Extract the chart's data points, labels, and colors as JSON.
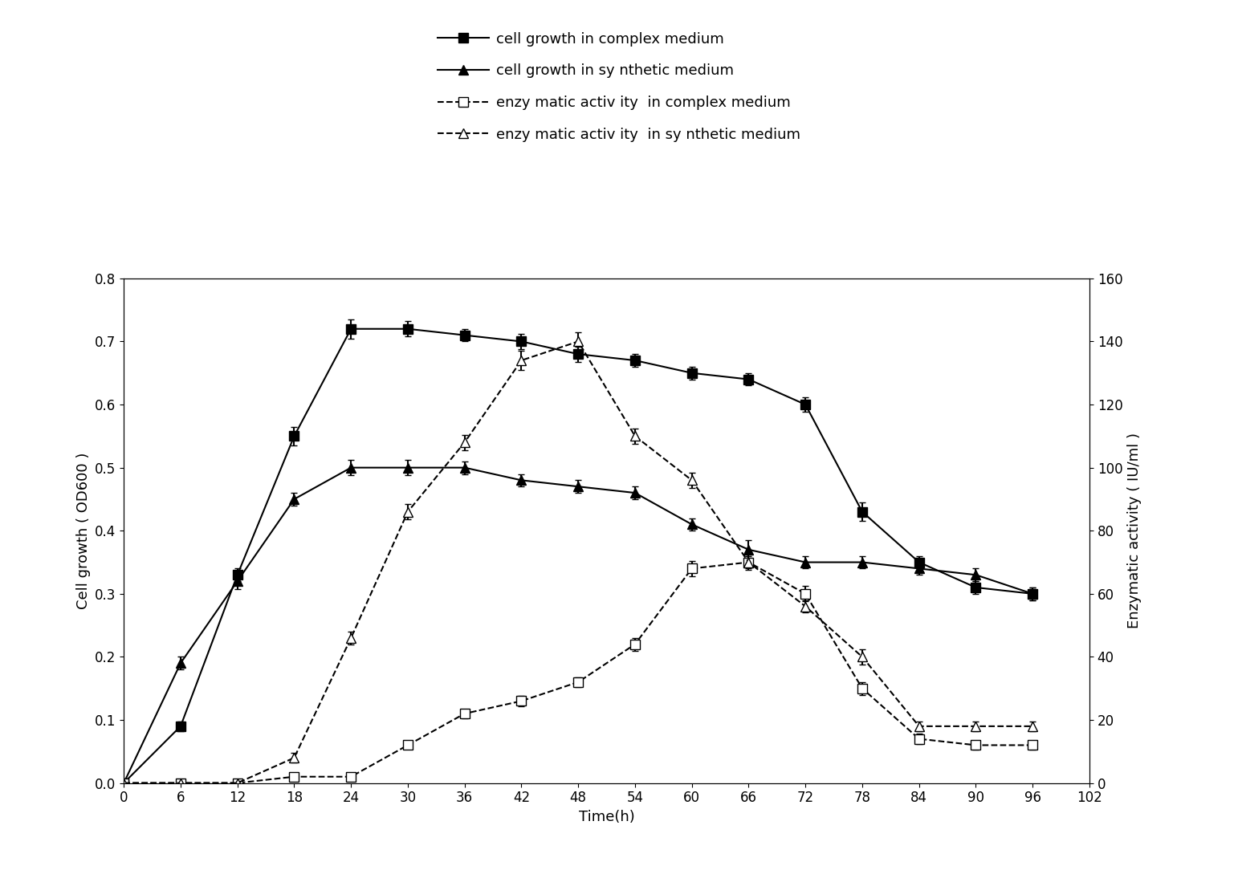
{
  "time": [
    0,
    6,
    12,
    18,
    24,
    30,
    36,
    42,
    48,
    54,
    60,
    66,
    72,
    78,
    84,
    90,
    96
  ],
  "cell_complex": [
    0.0,
    0.09,
    0.33,
    0.55,
    0.72,
    0.72,
    0.71,
    0.7,
    0.68,
    0.67,
    0.65,
    0.64,
    0.6,
    0.43,
    0.35,
    0.31,
    0.3
  ],
  "cell_complex_err": [
    0.005,
    0.008,
    0.01,
    0.015,
    0.015,
    0.012,
    0.01,
    0.012,
    0.012,
    0.01,
    0.01,
    0.01,
    0.012,
    0.015,
    0.01,
    0.01,
    0.01
  ],
  "cell_synthetic": [
    0.0,
    0.19,
    0.32,
    0.45,
    0.5,
    0.5,
    0.5,
    0.48,
    0.47,
    0.46,
    0.41,
    0.37,
    0.35,
    0.35,
    0.34,
    0.33,
    0.3
  ],
  "cell_synthetic_err": [
    0.005,
    0.01,
    0.012,
    0.01,
    0.012,
    0.012,
    0.01,
    0.01,
    0.01,
    0.01,
    0.01,
    0.015,
    0.01,
    0.01,
    0.01,
    0.01,
    0.01
  ],
  "enz_complex_iu": [
    0.0,
    0.0,
    0.0,
    2.0,
    2.0,
    12.0,
    22.0,
    26.0,
    32.0,
    44.0,
    68.0,
    70.0,
    60.0,
    30.0,
    14.0,
    12.0,
    12.0
  ],
  "enz_complex_err_iu": [
    1.0,
    1.0,
    1.0,
    1.0,
    1.0,
    1.2,
    1.4,
    1.6,
    1.6,
    2.0,
    2.4,
    2.4,
    2.4,
    2.0,
    1.6,
    1.4,
    1.4
  ],
  "enz_synthetic_iu": [
    0.0,
    0.0,
    0.0,
    8.0,
    46.0,
    86.0,
    108.0,
    134.0,
    140.0,
    110.0,
    96.0,
    70.0,
    56.0,
    40.0,
    18.0,
    18.0,
    18.0
  ],
  "enz_synthetic_err_iu": [
    1.0,
    1.0,
    1.0,
    1.6,
    2.0,
    2.4,
    2.4,
    3.0,
    3.0,
    2.4,
    2.4,
    2.0,
    2.0,
    2.4,
    1.6,
    1.6,
    1.6
  ],
  "left_ylim": [
    0,
    0.8
  ],
  "right_ylim": [
    0,
    160
  ],
  "xlim": [
    0,
    102
  ],
  "xticks": [
    0,
    6,
    12,
    18,
    24,
    30,
    36,
    42,
    48,
    54,
    60,
    66,
    72,
    78,
    84,
    90,
    96,
    102
  ],
  "left_yticks": [
    0.0,
    0.1,
    0.2,
    0.3,
    0.4,
    0.5,
    0.6,
    0.7,
    0.8
  ],
  "right_yticks": [
    0,
    20,
    40,
    60,
    80,
    100,
    120,
    140,
    160
  ],
  "xlabel": "Time(h)",
  "ylabel_left": "Cell growth ( OD600 )",
  "ylabel_right": "Enzymatic activity ( IU/ml )",
  "legend_labels": [
    "cell growth in complex medium",
    "cell growth in sy nthetic medium",
    "enzy matic activ ity  in complex medium",
    "enzy matic activ ity  in sy nthetic medium"
  ],
  "line_color": "#000000",
  "bg_color": "#ffffff",
  "label_fontsize": 13,
  "tick_fontsize": 12,
  "legend_fontsize": 13
}
